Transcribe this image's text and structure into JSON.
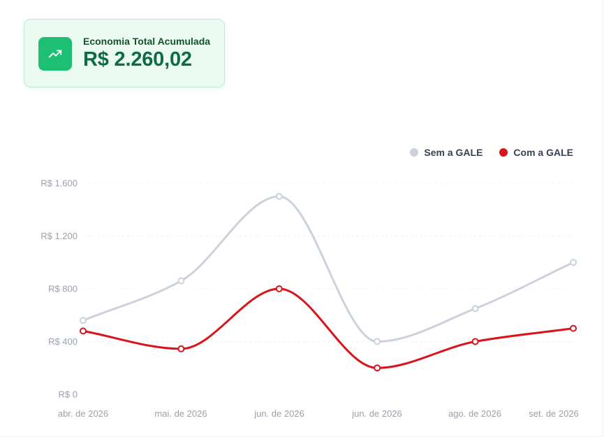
{
  "summary": {
    "label": "Economia Total Acumulada",
    "value": "R$ 2.260,02",
    "icon": "trending-up-icon",
    "accent": "#1dbf73"
  },
  "chart_data": {
    "type": "line",
    "categories": [
      "abr. de 2026",
      "mai. de 2026",
      "jun. de 2026",
      "jun. de 2026",
      "ago. de 2026",
      "set. de 2026"
    ],
    "series": [
      {
        "name": "Sem a GALE",
        "color": "#cbd2dc",
        "values": [
          560,
          860,
          1500,
          400,
          650,
          1000
        ]
      },
      {
        "name": "Com a GALE",
        "color": "#d9141b",
        "values": [
          480,
          345,
          800,
          200,
          400,
          500
        ]
      }
    ],
    "y_ticks": [
      {
        "value": 0,
        "label": "R$ 0"
      },
      {
        "value": 400,
        "label": "R$ 400"
      },
      {
        "value": 800,
        "label": "R$ 800"
      },
      {
        "value": 1200,
        "label": "R$ 1.200"
      },
      {
        "value": 1600,
        "label": "R$ 1.600"
      }
    ],
    "ylim": [
      0,
      1600
    ],
    "grid": true,
    "legend_position": "top-right"
  }
}
